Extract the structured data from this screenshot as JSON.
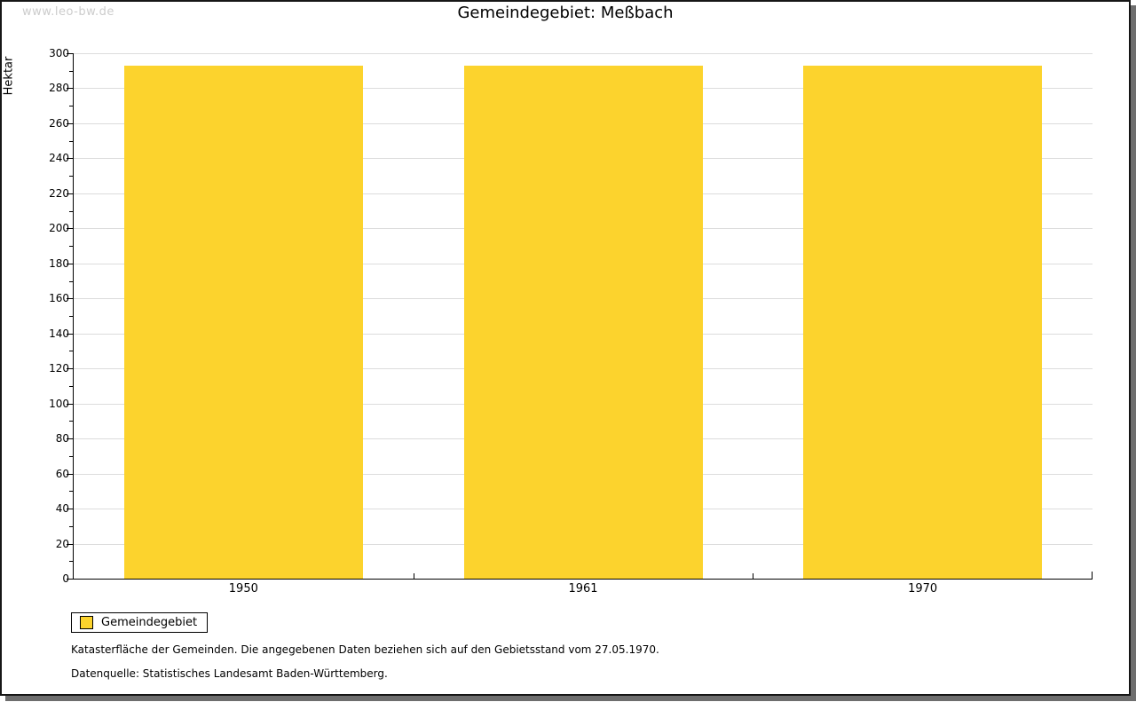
{
  "watermark": "www.leo-bw.de",
  "header": {
    "title": "Gemeindegebiet: Meßbach"
  },
  "chart_data": {
    "type": "bar",
    "title": "Gemeindegebiet: Meßbach",
    "categories": [
      "1950",
      "1961",
      "1970"
    ],
    "values": [
      293,
      293,
      293
    ],
    "xlabel": "",
    "ylabel": "Hektar",
    "ylim": [
      0,
      300
    ],
    "ytick_step": 20,
    "yminor_step": 10,
    "grid": true,
    "legend_position": "bottom-left",
    "legend_entries": [
      "Gemeindegebiet"
    ],
    "bar_color": "#fcd32d",
    "gridline_color": "#dcdcdc",
    "axis_color": "#000000"
  },
  "legend": {
    "label": "Gemeindegebiet"
  },
  "footer": {
    "line1": "Katasterfläche der Gemeinden. Die angegebenen Daten beziehen sich auf den Gebietsstand vom 27.05.1970.",
    "line2": "Datenquelle: Statistisches Landesamt Baden-Württemberg."
  },
  "colors": {
    "bar": "#fcd32d",
    "gridline": "#dcdcdc",
    "watermark": "#cccccc",
    "frame_border": "#161616",
    "frame_shadow": "#6e6e6e"
  }
}
